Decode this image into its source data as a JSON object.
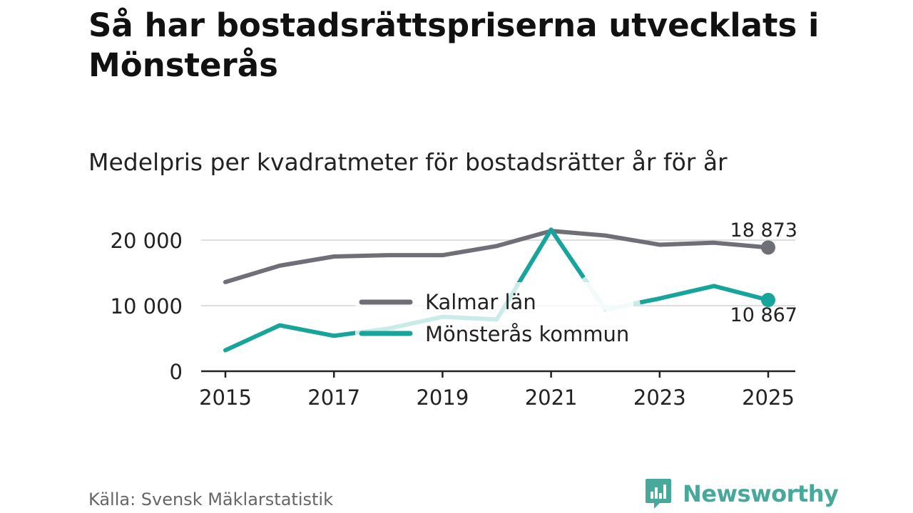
{
  "title": "Så har bostadsrättspriserna utvecklats i Mönsterås",
  "subtitle": "Medelpris per kvadratmeter för bostadsrätter år för år",
  "source": "Källa: Svensk Mäklarstatistik",
  "brand": {
    "name": "Newsworthy",
    "icon": "newsworthy-logo-icon",
    "color": "#46a99c"
  },
  "chart_data": {
    "type": "line",
    "title": "Medelpris per kvadratmeter för bostadsrätter år för år",
    "x": [
      2015,
      2016,
      2017,
      2018,
      2019,
      2020,
      2021,
      2022,
      2023,
      2024,
      2025
    ],
    "x_ticks": [
      2015,
      2017,
      2019,
      2021,
      2023,
      2025
    ],
    "x_tick_labels": [
      "2015",
      "2017",
      "2019",
      "2021",
      "2023",
      "2025"
    ],
    "y_ticks": [
      0,
      10000,
      20000
    ],
    "y_tick_labels": [
      "0",
      "10 000",
      "20 000"
    ],
    "ylim": [
      0,
      21500
    ],
    "grid": true,
    "legend": "center",
    "series": [
      {
        "name": "Kalmar län",
        "color": "#6f6f78",
        "values": [
          13600,
          16100,
          17500,
          17700,
          17700,
          19100,
          21400,
          20700,
          19300,
          19600,
          18873
        ],
        "end_label": "18 873"
      },
      {
        "name": "Mönsterås kommun",
        "color": "#16a49b",
        "faded_color": "#c7ebe7",
        "values": [
          3200,
          7000,
          5400,
          6500,
          8300,
          7900,
          21600,
          9400,
          11100,
          13000,
          10867
        ],
        "end_label": "10 867"
      }
    ]
  }
}
